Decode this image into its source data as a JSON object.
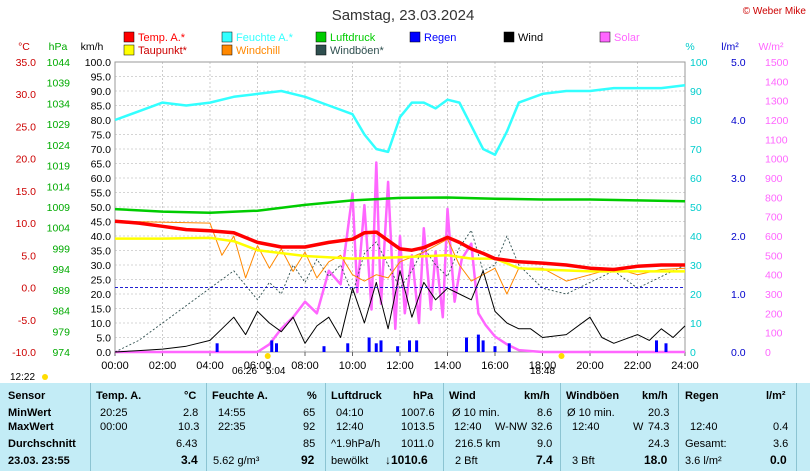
{
  "title": "Samstag, 23.03.2024",
  "copyright": "© Weber Mike",
  "colors": {
    "temp": "#ff0000",
    "dew": "#ffff00",
    "humid": "#33ffff",
    "wind": "#000000",
    "windchill": "#ff8800",
    "gust": "#2f4f4f",
    "pressure": "#00cc00",
    "rain": "#0000ff",
    "solar": "#ff66ff",
    "bg": "#c3ecf6"
  },
  "legend": [
    {
      "label": "Temp. A.*",
      "color": "#ff0000"
    },
    {
      "label": "Feuchte A.*",
      "color": "#33ffff"
    },
    {
      "label": "Luftdruck",
      "color": "#00cc00"
    },
    {
      "label": "Regen",
      "color": "#0000ff"
    },
    {
      "label": "Wind",
      "color": "#000000"
    },
    {
      "label": "Solar",
      "color": "#ff66ff"
    },
    {
      "label": "Taupunkt*",
      "color": "#ffff00"
    },
    {
      "label": "Windchill",
      "color": "#ff8800"
    },
    {
      "label": "Windböen*",
      "color": "#2f4f4f"
    }
  ],
  "chart_data": {
    "type": "line",
    "x_label": "time",
    "x_ticks": [
      "00:00",
      "02:00",
      "04:00",
      "06:00",
      "08:00",
      "10:00",
      "12:00",
      "14:00",
      "16:00",
      "18:00",
      "20:00",
      "22:00",
      "24:00"
    ],
    "axes": {
      "temp": {
        "unit": "°C",
        "min": -10,
        "max": 35,
        "ticks": [
          "35.0",
          "30.0",
          "25.0",
          "20.0",
          "15.0",
          "10.0",
          "5.0",
          "0.0",
          "-5.0",
          "-10.0"
        ]
      },
      "pressure": {
        "unit": "hPa",
        "min": 974,
        "max": 1044,
        "ticks": [
          "1044",
          "1039",
          "1034",
          "1029",
          "1024",
          "1019",
          "1014",
          "1009",
          "1004",
          "999",
          "994",
          "989",
          "984",
          "979",
          "974"
        ]
      },
      "wind": {
        "unit": "km/h",
        "min": 0,
        "max": 100,
        "ticks": [
          "100.0",
          "95.0",
          "90.0",
          "85.0",
          "80.0",
          "75.0",
          "70.0",
          "65.0",
          "60.0",
          "55.0",
          "50.0",
          "45.0",
          "40.0",
          "35.0",
          "30.0",
          "25.0",
          "20.0",
          "15.0",
          "10.0",
          "5.0",
          "0.0"
        ]
      },
      "humidity": {
        "unit": "%",
        "min": 0,
        "max": 100,
        "ticks": [
          "100",
          "90",
          "80",
          "70",
          "60",
          "50",
          "40",
          "30",
          "20",
          "10",
          "0"
        ]
      },
      "rain": {
        "unit": "l/m²",
        "min": 0,
        "max": 5,
        "ticks": [
          "5.0",
          "4.0",
          "3.0",
          "2.0",
          "1.0",
          "0.0"
        ]
      },
      "solar": {
        "unit": "W/m²",
        "min": 0,
        "max": 1500,
        "ticks": [
          "1500",
          "1400",
          "1300",
          "1200",
          "1100",
          "1000",
          "900",
          "800",
          "700",
          "600",
          "500",
          "400",
          "300",
          "200",
          "100",
          "0"
        ]
      }
    },
    "series": [
      {
        "name": "Temp. A.*",
        "axis": "temp",
        "x": [
          0,
          1,
          2,
          3,
          4,
          5,
          6,
          7,
          8,
          9,
          10,
          10.5,
          11,
          12,
          12.5,
          13,
          14,
          14.5,
          15,
          15.5,
          16,
          17,
          18,
          19,
          20,
          21,
          22,
          23,
          24
        ],
        "y": [
          10.3,
          10.0,
          9.5,
          9.0,
          8.8,
          8.5,
          7.0,
          6.3,
          6.3,
          7.0,
          7.5,
          8.5,
          8.6,
          6.0,
          5.8,
          6.2,
          7.8,
          7.0,
          6.0,
          5.3,
          4.5,
          4.0,
          3.8,
          3.5,
          3.0,
          2.8,
          3.3,
          3.5,
          3.5
        ]
      },
      {
        "name": "Taupunkt*",
        "axis": "temp",
        "x": [
          0,
          2,
          4,
          5,
          6,
          8,
          10,
          12,
          14,
          15,
          16,
          17,
          18,
          20,
          22,
          24
        ],
        "y": [
          7.6,
          7.6,
          7.7,
          7.2,
          5.8,
          4.9,
          4.5,
          4.7,
          5.0,
          4.5,
          4.5,
          3.0,
          2.8,
          2.5,
          2.5,
          2.5
        ]
      },
      {
        "name": "Feuchte A.*",
        "axis": "humidity",
        "x": [
          0,
          1,
          2,
          3,
          4,
          5,
          6,
          7,
          8,
          9,
          10,
          10.5,
          11,
          11.5,
          12,
          12.5,
          13,
          13.5,
          14,
          14.5,
          15,
          15.5,
          16,
          16.5,
          17,
          18,
          19,
          20,
          21,
          22,
          23,
          24
        ],
        "y": [
          80,
          83,
          86,
          85,
          86,
          88,
          89,
          90,
          88,
          85,
          82,
          75,
          70,
          69,
          81,
          86,
          86,
          84,
          87,
          86,
          78,
          70,
          68,
          76,
          86,
          89,
          90,
          90,
          91,
          91,
          91,
          92
        ]
      },
      {
        "name": "Luftdruck",
        "axis": "pressure",
        "x": [
          0,
          2,
          4,
          6,
          8,
          10,
          12,
          14,
          16,
          18,
          20,
          22,
          24
        ],
        "y": [
          1008.5,
          1007.9,
          1007.6,
          1008.1,
          1009.5,
          1010.6,
          1011.2,
          1011.3,
          1011.0,
          1010.8,
          1010.8,
          1010.6,
          1010.4
        ]
      },
      {
        "name": "Wind",
        "axis": "wind",
        "x": [
          0,
          1,
          2,
          3,
          4,
          4.5,
          5,
          5.5,
          6,
          6.5,
          7,
          7.5,
          8,
          8.5,
          9,
          9.5,
          10,
          10.5,
          11,
          11.5,
          12,
          12.5,
          13,
          13.5,
          14,
          14.5,
          15,
          15.5,
          16,
          16.5,
          17,
          17.5,
          18,
          19,
          20,
          20.5,
          21,
          22,
          22.5,
          23,
          23.5,
          24
        ],
        "y": [
          0,
          0.5,
          1,
          2,
          4,
          8,
          12,
          6,
          14,
          10,
          7,
          12,
          3,
          9,
          12,
          5,
          22,
          10,
          24,
          8,
          28,
          12,
          24,
          18,
          22,
          20,
          18,
          28,
          14,
          10,
          8,
          8,
          5,
          6,
          12,
          5,
          3,
          6,
          4,
          8,
          5,
          9
        ]
      },
      {
        "name": "Windchill",
        "axis": "temp",
        "x": [
          0,
          4,
          4.5,
          5,
          5.5,
          6,
          6.5,
          7,
          7.5,
          8,
          8.5,
          9,
          9.5,
          10,
          10.5,
          11,
          11.5,
          12,
          13,
          14,
          14.5,
          15,
          16,
          16.5,
          17,
          18,
          19,
          20,
          21,
          22,
          23,
          24
        ],
        "y": [
          10.3,
          10.0,
          5.0,
          8.0,
          1.5,
          6.5,
          3.0,
          6.0,
          2.5,
          5.5,
          1.5,
          4.0,
          5.0,
          2.0,
          1.0,
          2.0,
          1.5,
          4.0,
          5.5,
          7.5,
          3.5,
          1.0,
          3.0,
          -1.0,
          3.0,
          3.0,
          1.0,
          2.0,
          3.0,
          2.0,
          2.8,
          3.0
        ]
      },
      {
        "name": "Windböen*",
        "axis": "wind",
        "x": [
          0,
          1,
          2,
          3,
          4,
          5,
          6,
          6.5,
          7,
          7.5,
          8,
          8.5,
          9,
          9.5,
          10,
          10.5,
          11,
          11.5,
          12,
          12.5,
          13,
          13.5,
          14,
          14.5,
          15,
          15.5,
          16,
          16.5,
          17,
          18,
          19,
          20,
          21,
          22,
          23,
          24
        ],
        "y": [
          0,
          4,
          10,
          16,
          22,
          28,
          18,
          24,
          20,
          30,
          24,
          32,
          26,
          30,
          20,
          34,
          38,
          30,
          22,
          28,
          36,
          30,
          26,
          36,
          42,
          28,
          30,
          40,
          30,
          22,
          20,
          24,
          28,
          22,
          26,
          30
        ]
      },
      {
        "name": "Solar",
        "axis": "solar",
        "x": [
          0,
          6,
          6.5,
          7,
          7.5,
          8,
          8.5,
          9,
          9.5,
          10,
          10.2,
          10.5,
          10.8,
          11,
          11.2,
          11.5,
          11.8,
          12,
          12.2,
          12.5,
          12.8,
          13,
          13.3,
          13.5,
          13.8,
          14,
          14.3,
          14.6,
          15,
          15.3,
          15.6,
          16,
          16.5,
          17,
          18,
          24
        ],
        "y": [
          0,
          0,
          40,
          120,
          180,
          260,
          200,
          420,
          350,
          820,
          310,
          760,
          220,
          980,
          250,
          880,
          120,
          600,
          200,
          500,
          150,
          640,
          220,
          520,
          180,
          740,
          260,
          480,
          560,
          200,
          140,
          80,
          40,
          10,
          0,
          0
        ]
      },
      {
        "name": "Regen",
        "axis": "rain",
        "type": "bar",
        "x": [
          4.3,
          6.6,
          6.8,
          8.8,
          9.8,
          10.7,
          11.0,
          11.2,
          11.9,
          12.4,
          12.7,
          14.8,
          15.3,
          15.5,
          16.0,
          16.6,
          22.8,
          23.2
        ],
        "y": [
          0.15,
          0.2,
          0.15,
          0.1,
          0.15,
          0.25,
          0.15,
          0.2,
          0.1,
          0.2,
          0.2,
          0.25,
          0.3,
          0.2,
          0.1,
          0.15,
          0.2,
          0.15
        ]
      }
    ]
  },
  "markers": {
    "sunrise": "06:26",
    "sunset": "18:48",
    "moon_time": "5:04",
    "update_time": "12:22"
  },
  "table": {
    "row_labels": [
      "Sensor",
      "MinWert",
      "MaxWert",
      "Durchschnitt",
      "23.03. 23:55"
    ],
    "temp": {
      "header": "Temp. A.",
      "unit": "°C",
      "min_time": "20:25",
      "min": "2.8",
      "max_time": "00:00",
      "max": "10.3",
      "avg": "6.43",
      "now": "3.4"
    },
    "humid": {
      "header": "Feuchte A.",
      "unit": "%",
      "min_time": "14:55",
      "min": "65",
      "max_time": "22:35",
      "max": "92",
      "avg": "85",
      "now_abs": "5.62 g/m³",
      "now": "92"
    },
    "pressure": {
      "header": "Luftdruck",
      "unit": "hPa",
      "min_time": "04:10",
      "min": "1007.6",
      "max_time": "12:40",
      "max": "1013.5",
      "trend": "^1.9hPa/h",
      "avg": "1011.0",
      "now_label": "bewölkt",
      "now": "↓1010.6"
    },
    "wind": {
      "header": "Wind",
      "unit": "km/h",
      "avg10_label": "Ø 10 min.",
      "avg10": "8.6",
      "max_time": "12:40",
      "max_dir": "W-NW",
      "max": "32.6",
      "distance": "216.5 km",
      "avg": "9.0",
      "bft": "2 Bft",
      "now": "7.4"
    },
    "gust": {
      "header": "Windböen",
      "unit": "km/h",
      "avg10_label": "Ø 10 min.",
      "avg10": "20.3",
      "max_time": "12:40",
      "max_dir": "W",
      "max": "74.3",
      "avg": "24.3",
      "bft": "3 Bft",
      "now": "18.0"
    },
    "rain": {
      "header": "Regen",
      "unit": "l/m²",
      "max_time": "12:40",
      "max": "0.4",
      "total_label": "Gesamt:",
      "total": "3.6",
      "total_unit": "3.6 l/m²",
      "now": "0.0"
    }
  }
}
